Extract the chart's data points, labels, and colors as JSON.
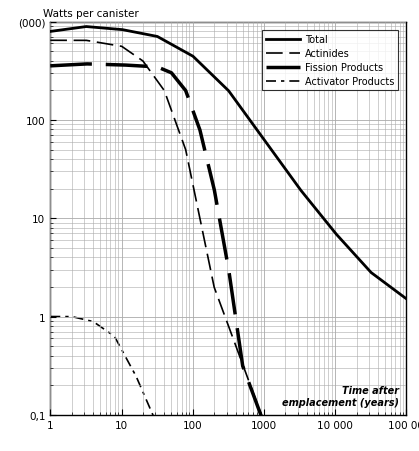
{
  "title_ylabel": "Watts per canister",
  "xlabel_line1": "Time after",
  "xlabel_line2": "emplacement (years)",
  "xlim": [
    1,
    100000
  ],
  "ylim": [
    0.1,
    1000
  ],
  "legend_labels": [
    "Total",
    "Actinides",
    "Fission Products",
    "Activator Products"
  ],
  "background_color": "#ffffff",
  "grid_color": "#aaaaaa",
  "xtick_labels": [
    "1",
    "10",
    "100",
    "1000",
    "10 000",
    "100 00"
  ],
  "ytick_labels": [
    "0,1",
    "1",
    "10",
    "100",
    "(000)"
  ]
}
